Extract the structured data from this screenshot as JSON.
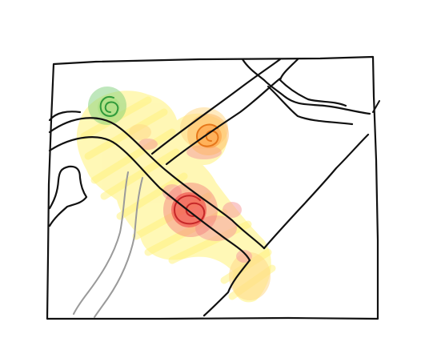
{
  "colors": {
    "background": "#ffffff",
    "ink": "#111111",
    "secondary_road": "#9a9a9a",
    "heat_low": "#fff27a",
    "heat_mid": "#ffd98a",
    "heat_orange": "#ff9b3d",
    "heat_red": "#f04444",
    "heat_pink": "#f6a0a0",
    "hotspot_green": "#7fcf7a"
  },
  "hotspots": [
    {
      "name": "green-hotspot",
      "color": "#7fcf7a"
    },
    {
      "name": "orange-hotspot",
      "color": "#ff9b3d"
    },
    {
      "name": "red-hotspot",
      "color": "#f04444"
    }
  ]
}
